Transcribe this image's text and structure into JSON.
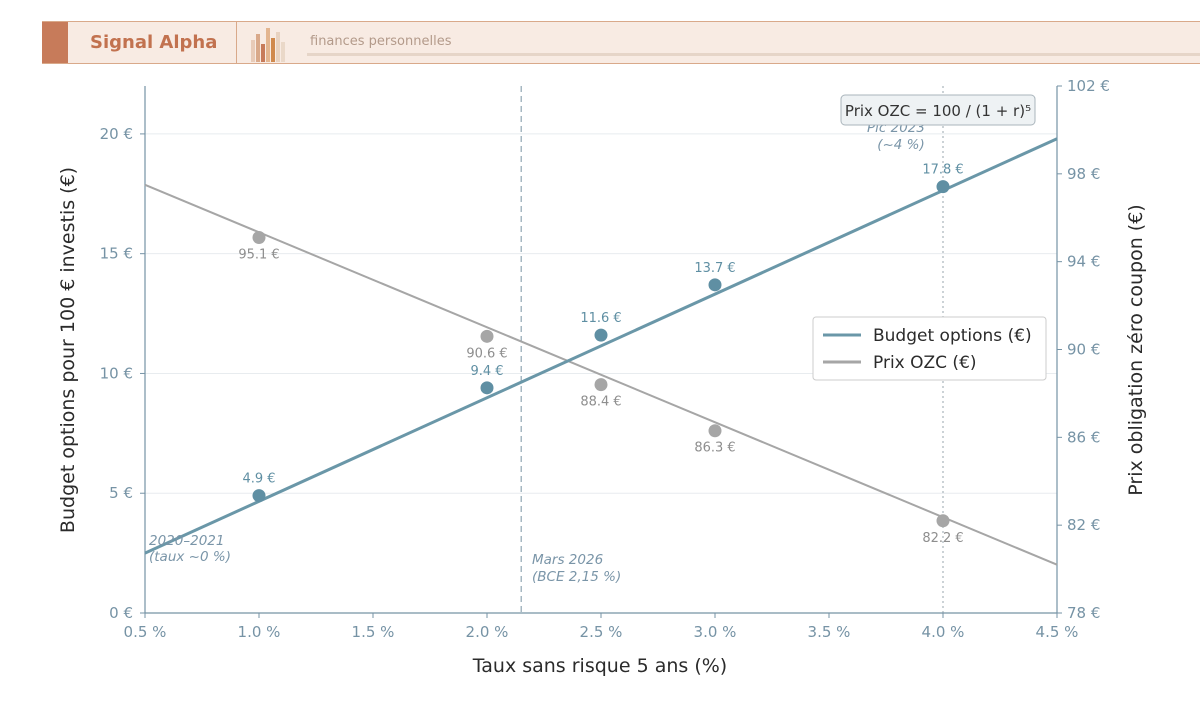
{
  "header": {
    "brand": "Signal Alpha",
    "tagline": "finances personnelles"
  },
  "chart_data": {
    "type": "line",
    "xlabel": "Taux sans risque 5 ans (%)",
    "ylabel_left": "Budget options pour 100 € investis (€)",
    "ylabel_right": "Prix obligation zéro coupon (€)",
    "xlim": [
      0.5,
      4.5
    ],
    "ylim_left": [
      0,
      22
    ],
    "ylim_right": [
      78,
      102
    ],
    "x_ticks": [
      0.5,
      1.0,
      1.5,
      2.0,
      2.5,
      3.0,
      3.5,
      4.0,
      4.5
    ],
    "x_tick_labels": [
      "0.5 %",
      "1.0 %",
      "1.5 %",
      "2.0 %",
      "2.5 %",
      "3.0 %",
      "3.5 %",
      "4.0 %",
      "4.5 %"
    ],
    "y_left_ticks": [
      0,
      5,
      10,
      15,
      20
    ],
    "y_left_tick_labels": [
      "0 €",
      "5 €",
      "10 €",
      "15 €",
      "20 €"
    ],
    "y_right_ticks": [
      78,
      82,
      86,
      90,
      94,
      98,
      102
    ],
    "y_right_tick_labels": [
      "78 €",
      "82 €",
      "86 €",
      "90 €",
      "94 €",
      "98 €",
      "102 €"
    ],
    "grid": "horizontal",
    "legend_position": "center-right",
    "series": [
      {
        "name": "Budget options (€)",
        "axis": "left",
        "color": "#6a97a8",
        "line_x": [
          0.5,
          4.5
        ],
        "line_y": [
          2.5,
          19.8
        ],
        "points_x": [
          1.0,
          2.0,
          2.5,
          3.0,
          4.0
        ],
        "points_y": [
          4.9,
          9.4,
          11.6,
          13.7,
          17.8
        ],
        "point_labels": [
          "4.9 €",
          "9.4 €",
          "11.6 €",
          "13.7 €",
          "17.8 €"
        ]
      },
      {
        "name": "Prix OZC (€)",
        "axis": "right",
        "color": "#a6a6a6",
        "line_x": [
          0.5,
          4.5
        ],
        "line_y": [
          97.5,
          80.2
        ],
        "points_x": [
          1.0,
          2.0,
          2.5,
          3.0,
          4.0
        ],
        "points_y": [
          95.1,
          90.6,
          88.4,
          86.3,
          82.2
        ],
        "point_labels": [
          "95.1 €",
          "90.6 €",
          "88.4 €",
          "86.3 €",
          "82.2 €"
        ]
      }
    ],
    "annotations": [
      {
        "line1": "2020–2021",
        "line2": "(taux ~0 %)"
      },
      {
        "line1": "Mars 2026",
        "line2": "(BCE 2,15 %)"
      },
      {
        "line1": "Pic 2023",
        "line2": "(~4 %)"
      }
    ],
    "formula": "Prix OZC = 100 / (1 + r)⁵",
    "vlines": [
      2.15,
      4.0
    ]
  }
}
